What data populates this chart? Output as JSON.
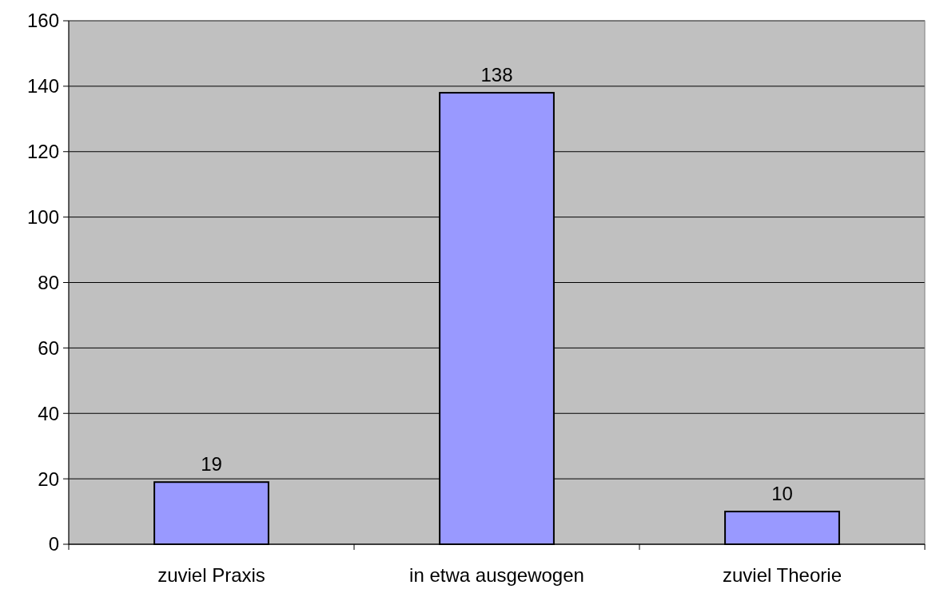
{
  "chart_data": {
    "type": "bar",
    "categories": [
      "zuviel Praxis",
      "in etwa ausgewogen",
      "zuviel Theorie"
    ],
    "values": [
      19,
      138,
      10
    ],
    "color": "#9999ff",
    "ylim": [
      0,
      160
    ],
    "yticks": [
      0,
      20,
      40,
      60,
      80,
      100,
      120,
      140,
      160
    ],
    "grid": "y",
    "data_labels": true
  }
}
